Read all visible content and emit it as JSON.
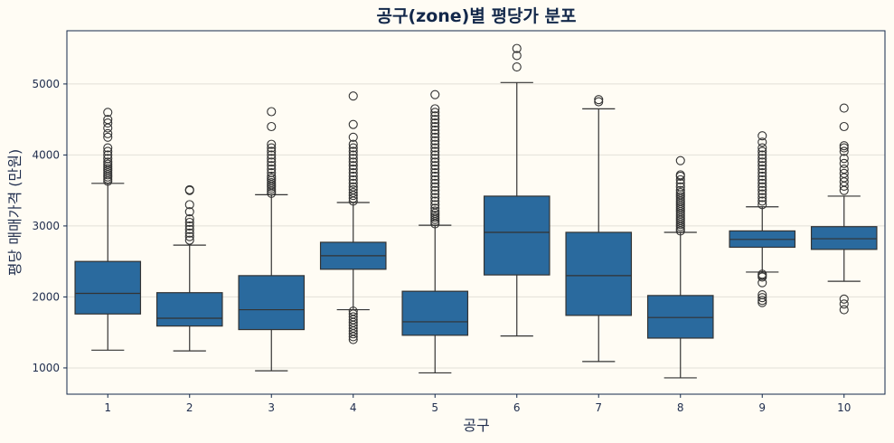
{
  "chart_data": {
    "type": "box",
    "title": "공구(zone)별 평당가 분포",
    "xlabel": "공구",
    "ylabel": "평당 매매가격 (만원)",
    "ylim": [
      630,
      5750
    ],
    "yticks": [
      1000,
      2000,
      3000,
      4000,
      5000
    ],
    "grid": "horizontal",
    "colors": {
      "box": "#2a6a9e",
      "line": "#333333",
      "frame": "#13284a",
      "grid": "#e2e0d8",
      "background": "#fffcf4"
    },
    "categories": [
      "1",
      "2",
      "3",
      "4",
      "5",
      "6",
      "7",
      "8",
      "9",
      "10"
    ],
    "boxes": [
      {
        "category": "1",
        "whisker_low": 1250,
        "q1": 1760,
        "median": 2050,
        "q3": 2500,
        "whisker_high": 3600,
        "outliers": [
          3630,
          3660,
          3690,
          3720,
          3750,
          3780,
          3810,
          3840,
          3870,
          3900,
          3950,
          4000,
          4050,
          4100,
          4250,
          4300,
          4380,
          4450,
          4500,
          4600
        ]
      },
      {
        "category": "2",
        "whisker_low": 1240,
        "q1": 1590,
        "median": 1700,
        "q3": 2060,
        "whisker_high": 2730,
        "outliers": [
          2800,
          2850,
          2900,
          2950,
          3000,
          3050,
          3100,
          3200,
          3300,
          3500,
          3510
        ]
      },
      {
        "category": "3",
        "whisker_low": 960,
        "q1": 1540,
        "median": 1820,
        "q3": 2300,
        "whisker_high": 3440,
        "outliers": [
          3460,
          3490,
          3520,
          3550,
          3580,
          3610,
          3640,
          3670,
          3700,
          3750,
          3800,
          3850,
          3900,
          3950,
          4000,
          4050,
          4100,
          4150,
          4400,
          4610
        ]
      },
      {
        "category": "4",
        "whisker_low": 1820,
        "q1": 2390,
        "median": 2580,
        "q3": 2770,
        "whisker_high": 3330,
        "outliers": [
          1400,
          1440,
          1480,
          1520,
          1560,
          1600,
          1640,
          1680,
          1720,
          1760,
          1800,
          3350,
          3390,
          3430,
          3470,
          3510,
          3550,
          3600,
          3650,
          3700,
          3750,
          3800,
          3850,
          3900,
          3950,
          4000,
          4050,
          4100,
          4150,
          4250,
          4430,
          4830
        ]
      },
      {
        "category": "5",
        "whisker_low": 930,
        "q1": 1460,
        "median": 1650,
        "q3": 2080,
        "whisker_high": 3010,
        "outliers": [
          3030,
          3060,
          3090,
          3120,
          3150,
          3180,
          3210,
          3250,
          3300,
          3350,
          3400,
          3450,
          3500,
          3550,
          3600,
          3650,
          3700,
          3750,
          3800,
          3850,
          3900,
          3950,
          4000,
          4050,
          4100,
          4150,
          4200,
          4250,
          4300,
          4350,
          4400,
          4450,
          4500,
          4550,
          4600,
          4650,
          4850
        ]
      },
      {
        "category": "6",
        "whisker_low": 1450,
        "q1": 2310,
        "median": 2910,
        "q3": 3420,
        "whisker_high": 5020,
        "outliers": [
          5240,
          5400,
          5500
        ]
      },
      {
        "category": "7",
        "whisker_low": 1090,
        "q1": 1740,
        "median": 2300,
        "q3": 2910,
        "whisker_high": 4650,
        "outliers": [
          4750,
          4780
        ]
      },
      {
        "category": "8",
        "whisker_low": 860,
        "q1": 1420,
        "median": 1710,
        "q3": 2020,
        "whisker_high": 2910,
        "outliers": [
          2930,
          2960,
          2990,
          3020,
          3050,
          3080,
          3110,
          3140,
          3170,
          3200,
          3230,
          3260,
          3290,
          3320,
          3350,
          3380,
          3410,
          3440,
          3470,
          3500,
          3550,
          3600,
          3650,
          3700,
          3720,
          3920
        ]
      },
      {
        "category": "9",
        "whisker_low": 2350,
        "q1": 2700,
        "median": 2810,
        "q3": 2930,
        "whisker_high": 3270,
        "outliers": [
          1920,
          1950,
          1990,
          2030,
          2200,
          2280,
          2300,
          2320,
          3300,
          3350,
          3400,
          3450,
          3500,
          3550,
          3600,
          3650,
          3700,
          3750,
          3800,
          3850,
          3900,
          3950,
          4000,
          4050,
          4100,
          4180,
          4270
        ]
      },
      {
        "category": "10",
        "whisker_low": 2220,
        "q1": 2670,
        "median": 2820,
        "q3": 2990,
        "whisker_high": 3420,
        "outliers": [
          1820,
          1900,
          1970,
          3500,
          3560,
          3620,
          3680,
          3740,
          3800,
          3880,
          3950,
          4050,
          4100,
          4130,
          4400,
          4660
        ]
      }
    ]
  }
}
